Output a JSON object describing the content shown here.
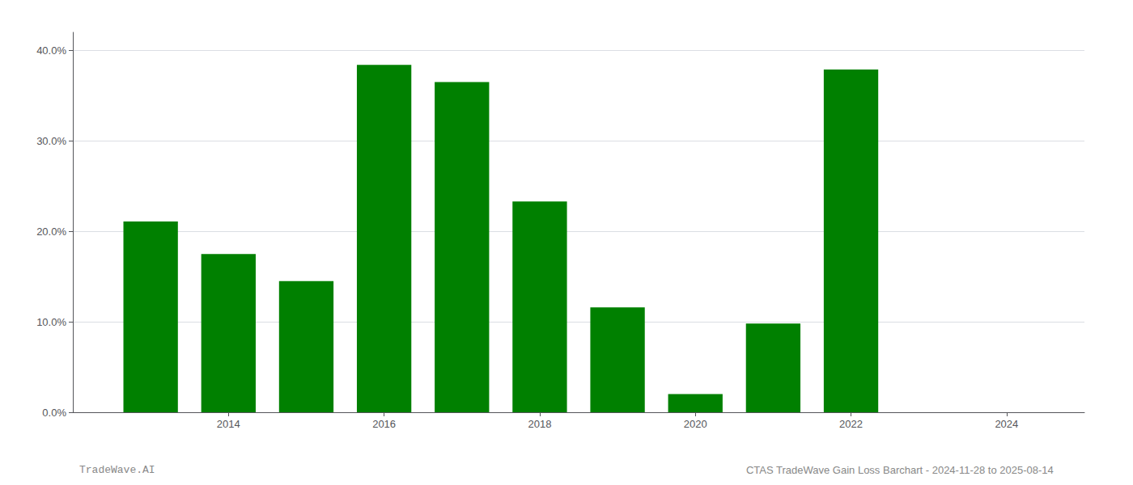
{
  "chart_data": {
    "type": "bar",
    "x": [
      2013,
      2014,
      2015,
      2016,
      2017,
      2018,
      2019,
      2020,
      2021,
      2022,
      2023
    ],
    "values": [
      0.211,
      0.175,
      0.145,
      0.384,
      0.365,
      0.233,
      0.116,
      0.02,
      0.098,
      0.379,
      0.0
    ],
    "color": "#008000",
    "xlim": [
      2012,
      2025
    ],
    "xticks": [
      2014,
      2016,
      2018,
      2020,
      2022,
      2024
    ],
    "ylim": [
      0,
      0.42
    ],
    "yticks": [
      {
        "value": 0.0,
        "label": "0.0%"
      },
      {
        "value": 0.1,
        "label": "10.0%"
      },
      {
        "value": 0.2,
        "label": "20.0%"
      },
      {
        "value": 0.3,
        "label": "30.0%"
      },
      {
        "value": 0.4,
        "label": "40.0%"
      }
    ],
    "grid": true,
    "annotations": [
      "TradeWave.AI",
      "CTAS TradeWave Gain Loss Barchart - 2024-11-28 to 2025-08-14"
    ]
  }
}
